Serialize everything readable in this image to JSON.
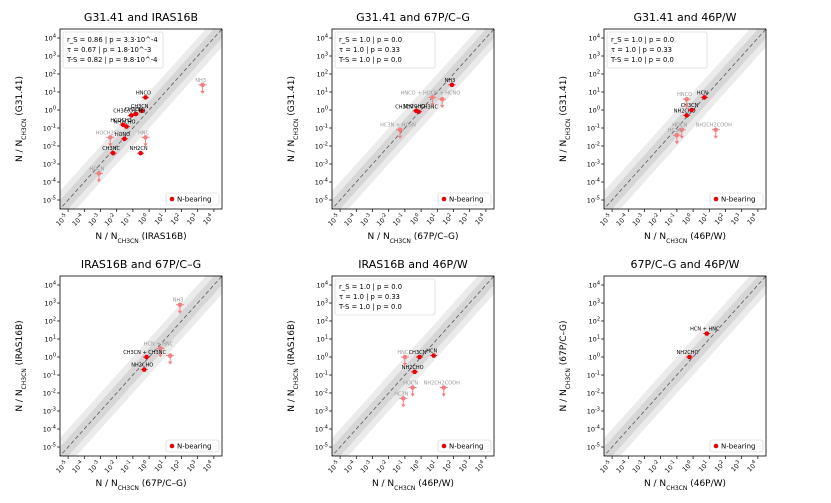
{
  "figure": {
    "legend_label": "N-bearing",
    "accent_color": "#e8000b",
    "upper_limit_color": "#f08080",
    "band_outer_color": "#ebebeb",
    "band_inner_color": "#d6d6d6"
  },
  "chart_data": [
    {
      "type": "scatter",
      "title": "G31.41 and IRAS16B",
      "xlabel": "N / N_CH3CN (IRAS16B)",
      "ylabel": "N / N_CH3CN (G31.41)",
      "xlim_log10": [
        -5.5,
        4.5
      ],
      "ylim_log10": [
        -5.5,
        4.5
      ],
      "xticks": [
        "10^-5",
        "10^-4",
        "10^-3",
        "10^-2",
        "10^-1",
        "10^0",
        "10^1",
        "10^2",
        "10^3",
        "10^4"
      ],
      "yticks": [
        "10^-5",
        "10^-4",
        "10^-3",
        "10^-2",
        "10^-1",
        "10^0",
        "10^1",
        "10^2",
        "10^3",
        "10^4"
      ],
      "stats": [
        "r_S = 0.86  |  p = 3.3·10^-4",
        "τ = 0.67  |  p = 1.8·10^-3",
        "T-S = 0.82  |  p = 9.8·10^-4"
      ],
      "points": [
        {
          "label": "HNCO",
          "x": 0.6,
          "y": 5.0,
          "limit": false
        },
        {
          "label": "CH3CN",
          "x": 0.35,
          "y": 0.9,
          "limit": false
        },
        {
          "label": "CH3C(O)CH3",
          "x": 0.08,
          "y": 0.5,
          "limit": false
        },
        {
          "label": "CH3OH",
          "x": 0.15,
          "y": 0.6,
          "limit": false
        },
        {
          "label": "NH2CHO",
          "x": 0.04,
          "y": 0.12,
          "limit": false
        },
        {
          "label": "HCOCH3",
          "x": 0.025,
          "y": 0.15,
          "limit": false
        },
        {
          "label": "HONO",
          "x": 0.03,
          "y": 0.025,
          "limit": false
        },
        {
          "label": "CH3NC",
          "x": 0.006,
          "y": 0.004,
          "limit": false
        },
        {
          "label": "NH2CN",
          "x": 0.3,
          "y": 0.004,
          "limit": false
        },
        {
          "label": "HOCH2CN",
          "x": 0.004,
          "y": 0.03,
          "limit": true
        },
        {
          "label": "HNC",
          "x": 0.6,
          "y": 0.03,
          "limit": true
        },
        {
          "label": "HOCN",
          "x": 0.0008,
          "y": 0.0003,
          "limit": true
        },
        {
          "label": "NH3",
          "x": 2000,
          "y": 25,
          "limit": true
        }
      ]
    },
    {
      "type": "scatter",
      "title": "G31.41 and 67P/C–G",
      "xlabel": "N / N_CH3CN (67P/C–G)",
      "ylabel": "N / N_CH3CN (G31.41)",
      "xlim_log10": [
        -5.5,
        4.5
      ],
      "ylim_log10": [
        -5.5,
        4.5
      ],
      "xticks": [
        "10^-5",
        "10^-4",
        "10^-3",
        "10^-2",
        "10^-1",
        "10^0",
        "10^1",
        "10^2",
        "10^3",
        "10^4"
      ],
      "yticks": [
        "10^-5",
        "10^-4",
        "10^-3",
        "10^-2",
        "10^-1",
        "10^0",
        "10^1",
        "10^2",
        "10^3",
        "10^4"
      ],
      "stats": [
        "r_S = 1.0  |  p = 0.0",
        "τ = 1.0  |  p = 0.33",
        "T-S = 1.0  |  p = 0.0"
      ],
      "points": [
        {
          "label": "NH3",
          "x": 80,
          "y": 25,
          "limit": false
        },
        {
          "label": "NH2CHO",
          "x": 0.5,
          "y": 0.9,
          "limit": false
        },
        {
          "label": "CH3CN + CH3NC",
          "x": 0.7,
          "y": 0.8,
          "limit": false
        },
        {
          "label": "HNCO + HOCN + HCNO",
          "x": 5,
          "y": 5,
          "limit": true
        },
        {
          "label": "HC3N + HC5N",
          "x": 0.05,
          "y": 0.08,
          "limit": true
        },
        {
          "label": "",
          "x": 20,
          "y": 4,
          "limit": true
        }
      ]
    },
    {
      "type": "scatter",
      "title": "G31.41 and 46P/W",
      "xlabel": "N / N_CH3CN (46P/W)",
      "ylabel": "N / N_CH3CN (G31.41)",
      "xlim_log10": [
        -5.5,
        4.5
      ],
      "ylim_log10": [
        -5.5,
        4.5
      ],
      "xticks": [
        "10^-5",
        "10^-4",
        "10^-3",
        "10^-2",
        "10^-1",
        "10^0",
        "10^1",
        "10^2",
        "10^3",
        "10^4"
      ],
      "yticks": [
        "10^-5",
        "10^-4",
        "10^-3",
        "10^-2",
        "10^-1",
        "10^0",
        "10^1",
        "10^2",
        "10^3",
        "10^4"
      ],
      "stats": [
        "r_S = 1.0  |  p = 0.0",
        "τ = 1.0  |  p = 0.33",
        "T-S = 1.0  |  p = 0.0"
      ],
      "points": [
        {
          "label": "HCN",
          "x": 5,
          "y": 5,
          "limit": false
        },
        {
          "label": "NH2CHO",
          "x": 0.4,
          "y": 0.5,
          "limit": false
        },
        {
          "label": "CH3CN",
          "x": 0.8,
          "y": 1.0,
          "limit": false
        },
        {
          "label": "HNCO",
          "x": 0.4,
          "y": 4,
          "limit": true
        },
        {
          "label": "NH2CH2COOH",
          "x": 25,
          "y": 0.08,
          "limit": true
        },
        {
          "label": "HOCN",
          "x": 0.2,
          "y": 0.08,
          "limit": true
        },
        {
          "label": "HC3N",
          "x": 0.1,
          "y": 0.04,
          "limit": true
        }
      ]
    },
    {
      "type": "scatter",
      "title": "IRAS16B and 67P/C–G",
      "xlabel": "N / N_CH3CN (67P/C–G)",
      "ylabel": "N / N_CH3CN (IRAS16B)",
      "xlim_log10": [
        -5.5,
        4.5
      ],
      "ylim_log10": [
        -5.5,
        4.5
      ],
      "xticks": [
        "10^-5",
        "10^-4",
        "10^-3",
        "10^-2",
        "10^-1",
        "10^0",
        "10^1",
        "10^2",
        "10^3",
        "10^4"
      ],
      "yticks": [
        "10^-5",
        "10^-4",
        "10^-3",
        "10^-2",
        "10^-1",
        "10^0",
        "10^1",
        "10^2",
        "10^3",
        "10^4"
      ],
      "stats": [],
      "points": [
        {
          "label": "NH3",
          "x": 80,
          "y": 800,
          "limit": true
        },
        {
          "label": "HCN + HNC",
          "x": 5,
          "y": 3,
          "limit": true
        },
        {
          "label": "CH3CN + CH3NC",
          "x": 0.7,
          "y": 1.0,
          "limit": false
        },
        {
          "label": "NH2CHO",
          "x": 0.5,
          "y": 0.2,
          "limit": false
        },
        {
          "label": "",
          "x": 20,
          "y": 1.2,
          "limit": true
        }
      ]
    },
    {
      "type": "scatter",
      "title": "IRAS16B and 46P/W",
      "xlabel": "N / N_CH3CN (46P/W)",
      "ylabel": "N / N_CH3CN (IRAS16B)",
      "xlim_log10": [
        -5.5,
        4.5
      ],
      "ylim_log10": [
        -5.5,
        4.5
      ],
      "xticks": [
        "10^-5",
        "10^-4",
        "10^-3",
        "10^-2",
        "10^-1",
        "10^0",
        "10^1",
        "10^2",
        "10^3",
        "10^4"
      ],
      "yticks": [
        "10^-5",
        "10^-4",
        "10^-3",
        "10^-2",
        "10^-1",
        "10^0",
        "10^1",
        "10^2",
        "10^3",
        "10^4"
      ],
      "stats": [
        "r_S = 1.0  |  p = 0.0",
        "τ = 1.0  |  p = 0.33",
        "T-S = 1.0  |  p = 0.0"
      ],
      "points": [
        {
          "label": "HCN",
          "x": 6,
          "y": 1.2,
          "limit": false
        },
        {
          "label": "CH3CN",
          "x": 0.8,
          "y": 1.0,
          "limit": false
        },
        {
          "label": "NH2CHO",
          "x": 0.4,
          "y": 0.15,
          "limit": false
        },
        {
          "label": "HNC",
          "x": 0.1,
          "y": 1.0,
          "limit": true
        },
        {
          "label": "NH2CH2COOH",
          "x": 25,
          "y": 0.02,
          "limit": true
        },
        {
          "label": "HOCN",
          "x": 0.3,
          "y": 0.02,
          "limit": true
        },
        {
          "label": "HC3N",
          "x": 0.08,
          "y": 0.005,
          "limit": true
        }
      ]
    },
    {
      "type": "scatter",
      "title": "67P/C–G and 46P/W",
      "xlabel": "N / N_CH3CN (46P/W)",
      "ylabel": "N / N_CH3CN (67P/C–G)",
      "xlim_log10": [
        -5.5,
        4.5
      ],
      "ylim_log10": [
        -5.5,
        4.5
      ],
      "xticks": [
        "10^-5",
        "10^-4",
        "10^-3",
        "10^-2",
        "10^-1",
        "10^0",
        "10^1",
        "10^2",
        "10^3",
        "10^4"
      ],
      "yticks": [
        "10^-5",
        "10^-4",
        "10^-3",
        "10^-2",
        "10^-1",
        "10^0",
        "10^1",
        "10^2",
        "10^3",
        "10^4"
      ],
      "stats": [],
      "points": [
        {
          "label": "HCN + HNC",
          "x": 7,
          "y": 20,
          "limit": false
        },
        {
          "label": "NH2CHO",
          "x": 0.6,
          "y": 1.0,
          "limit": false
        }
      ]
    }
  ]
}
